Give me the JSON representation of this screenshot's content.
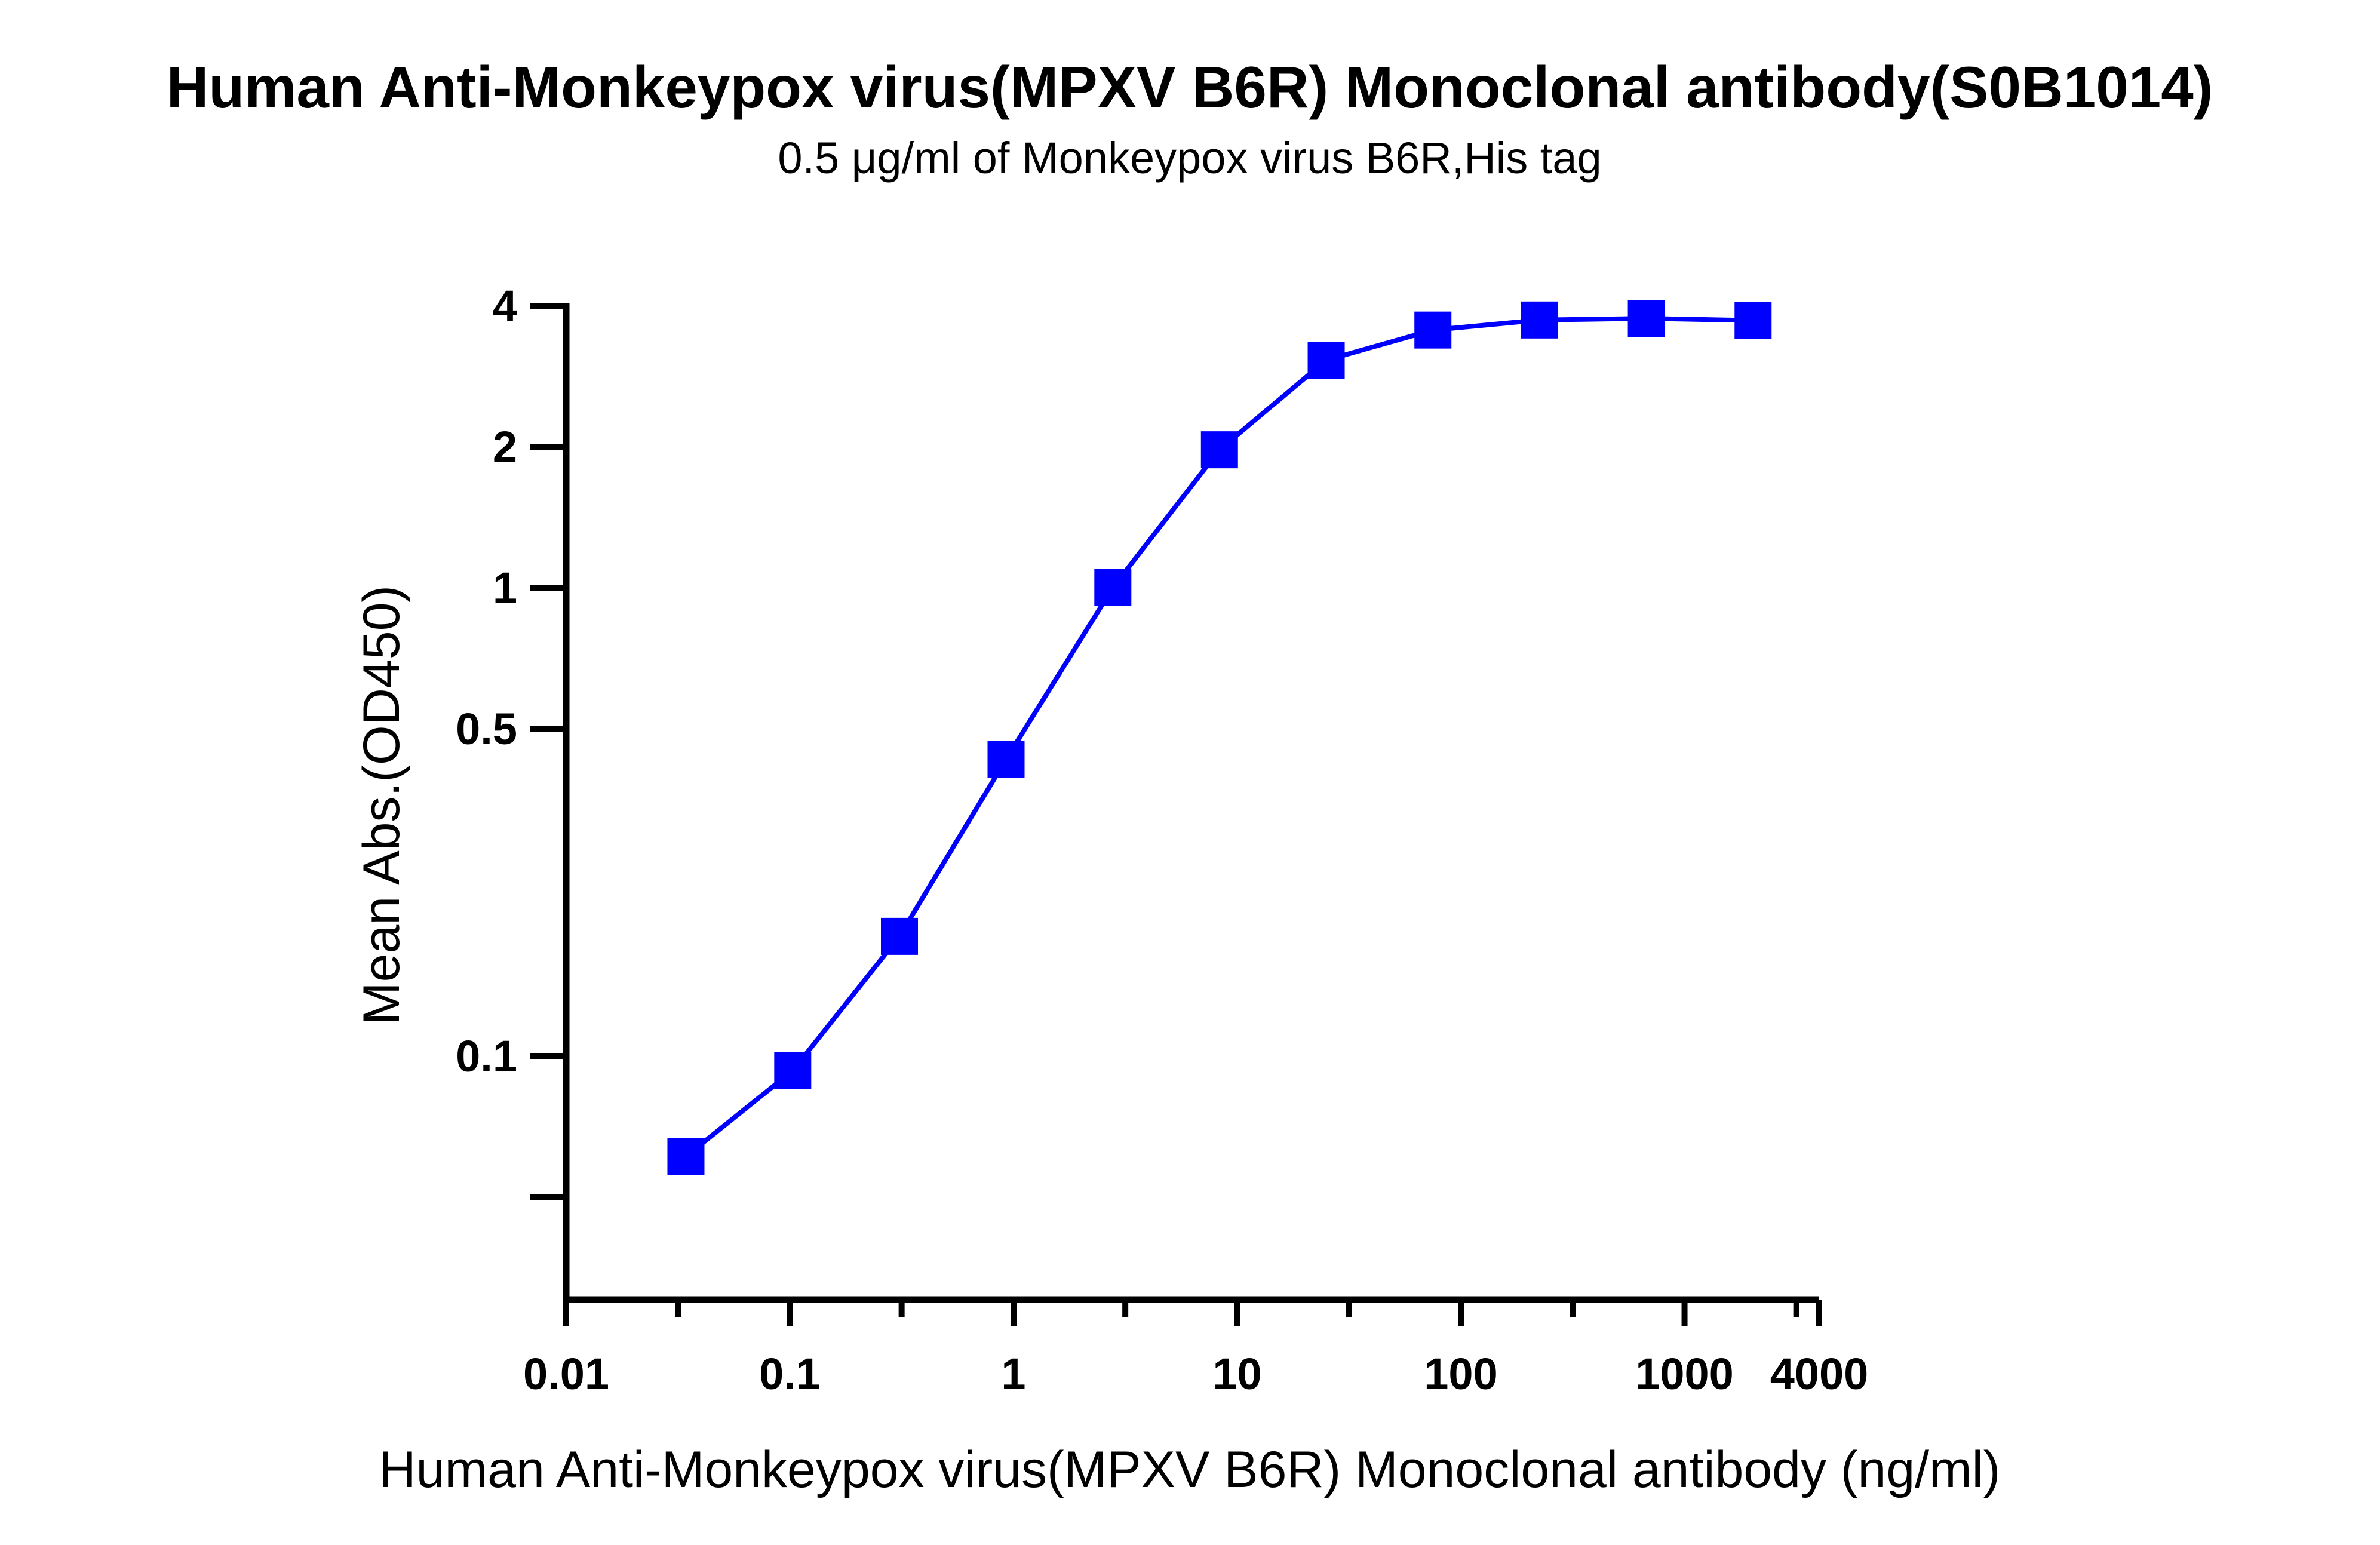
{
  "chart_data": {
    "type": "line",
    "title": "Human Anti-Monkeypox virus(MPXV B6R) Monoclonal antibody(S0B1014)",
    "subtitle": "0.5 μg/ml of Monkeypox virus B6R,His tag",
    "xlabel": "Human Anti-Monkeypox virus(MPXV B6R) Monoclonal antibody (ng/ml)",
    "ylabel": "Mean Abs.(OD450)",
    "x_scale": "log",
    "y_scale": "log",
    "xlim": [
      0.01,
      4000
    ],
    "ylim": [
      0.027,
      4.0
    ],
    "x_ticks": [
      0.01,
      0.1,
      1,
      10,
      100,
      1000,
      4000
    ],
    "x_tick_labels": [
      "0.01",
      "0.1",
      "1",
      "10",
      "100",
      "1000",
      "4000"
    ],
    "x_minor_ticks": [
      0.0316,
      0.316,
      3.16,
      31.6,
      316,
      3160
    ],
    "y_ticks": [
      0.05,
      0.1,
      0.5,
      1,
      2,
      4
    ],
    "y_tick_labels": [
      "",
      "0.1",
      "0.5",
      "1",
      "2",
      "4"
    ],
    "grid": false,
    "series": [
      {
        "marker": "square",
        "color": "#0000ff",
        "x": [
          0.0343,
          0.103,
          0.309,
          0.926,
          2.78,
          8.33,
          25,
          75,
          225,
          675,
          2025
        ],
        "y": [
          0.061,
          0.093,
          0.18,
          0.43,
          1.0,
          1.97,
          3.06,
          3.55,
          3.73,
          3.76,
          3.72
        ]
      }
    ]
  }
}
